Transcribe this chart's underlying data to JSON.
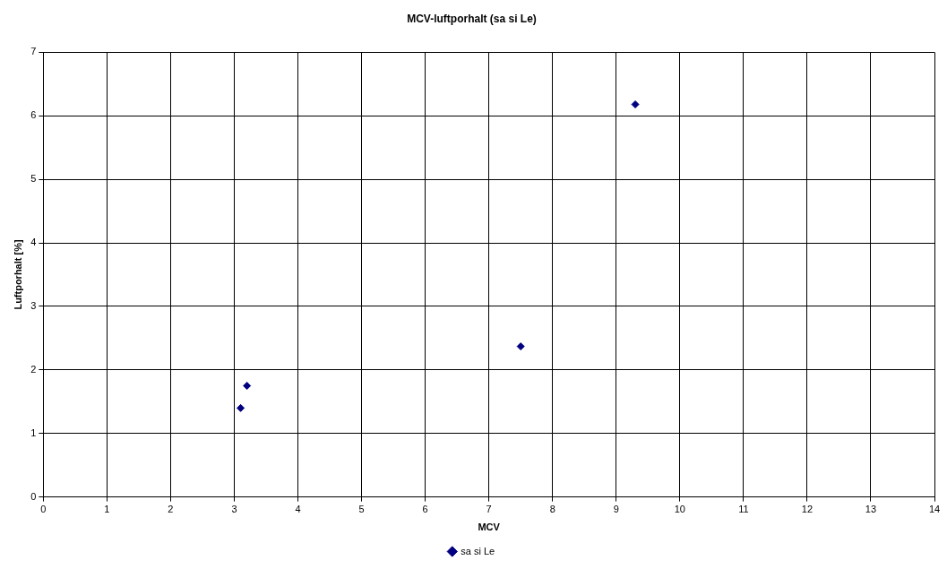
{
  "chart_data": {
    "type": "scatter",
    "title": "MCV-luftporhalt (sa si Le)",
    "xlabel": "MCV",
    "ylabel": "Luftporhalt [%]",
    "x": [
      3.1,
      3.2,
      7.5,
      9.3
    ],
    "series": [
      {
        "name": "sa si Le",
        "color": "#000080",
        "values": [
          1.4,
          1.75,
          2.37,
          6.18
        ]
      }
    ],
    "xlim": [
      0,
      14
    ],
    "xticks": [
      0,
      1,
      2,
      3,
      4,
      5,
      6,
      7,
      8,
      9,
      10,
      11,
      12,
      13,
      14
    ],
    "ylim": [
      0,
      7
    ],
    "yticks": [
      0,
      1,
      2,
      3,
      4,
      5,
      6,
      7
    ],
    "grid": true,
    "legend": "bottom",
    "marker": "diamond"
  }
}
